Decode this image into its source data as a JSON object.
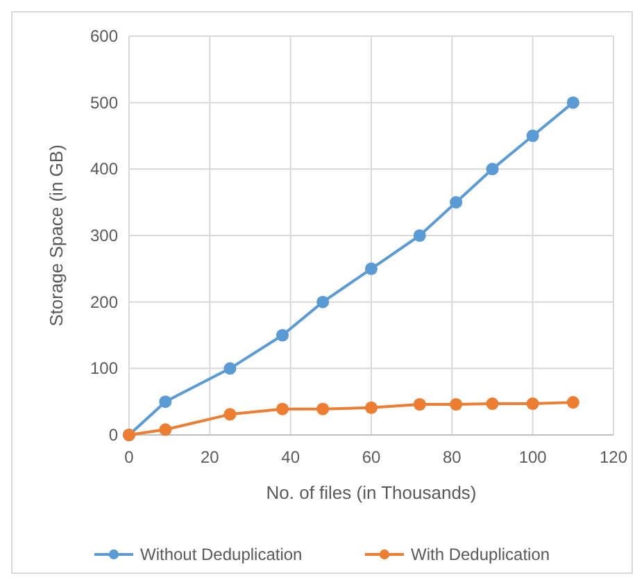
{
  "chart_data": {
    "type": "line",
    "xlabel": "No. of files (in Thousands)",
    "ylabel": "Storage Space (in GB)",
    "xlim": [
      0,
      120
    ],
    "xticks": [
      0,
      20,
      40,
      60,
      80,
      100,
      120
    ],
    "ylim": [
      0,
      600
    ],
    "yticks": [
      0,
      100,
      200,
      300,
      400,
      500,
      600
    ],
    "grid": true,
    "legend": "bottom",
    "marker": "circle",
    "line_style": "solid",
    "x": [
      0,
      9,
      25,
      38,
      48,
      60,
      72,
      81,
      90,
      100,
      110
    ],
    "series": [
      {
        "name": "Without Deduplication",
        "color": "#5b9bd5",
        "values": [
          0,
          50,
          100,
          150,
          200,
          250,
          300,
          350,
          400,
          450,
          500
        ]
      },
      {
        "name": "With Deduplication",
        "color": "#ed7d31",
        "values": [
          0,
          8,
          31,
          39,
          39,
          41,
          46,
          46,
          47,
          47,
          49
        ]
      }
    ]
  }
}
